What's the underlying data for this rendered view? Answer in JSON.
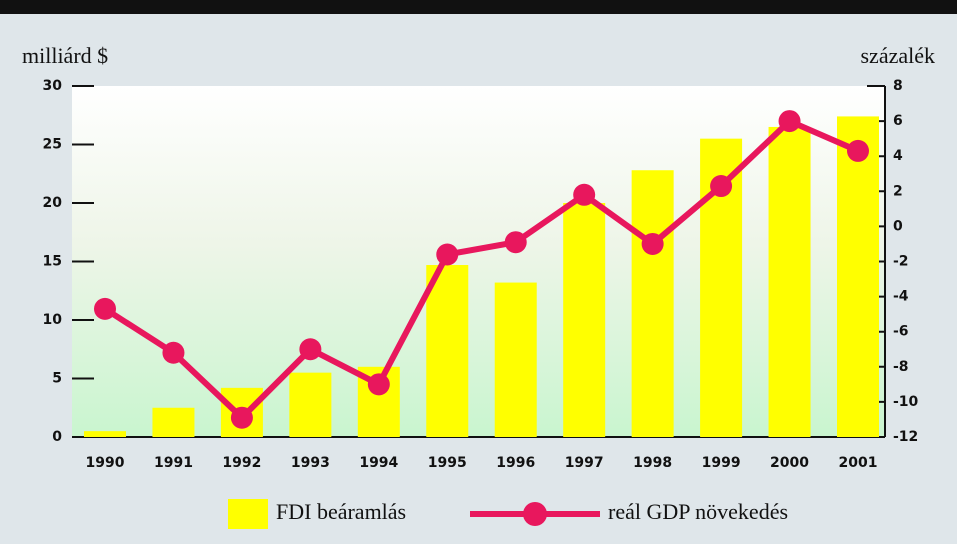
{
  "chart_data": {
    "type": "bar_line",
    "y_label": "milliárd $",
    "y2_label": "százalék",
    "categories": [
      "1990",
      "1991",
      "1992",
      "1993",
      "1994",
      "1995",
      "1996",
      "1997",
      "1998",
      "1999",
      "2000",
      "2001"
    ],
    "series": [
      {
        "name": "FDI beáramlás",
        "type": "bar",
        "color": "#ffff00",
        "values": [
          0.5,
          2.5,
          4.2,
          5.5,
          6,
          14.7,
          13.2,
          20,
          22.8,
          25.5,
          26.5,
          27.4
        ]
      },
      {
        "name": "reál GDP növekedés",
        "type": "line",
        "axis": "y2",
        "color": "#e8175d",
        "values": [
          -4.7,
          -7.2,
          -10.9,
          -7.0,
          -9.0,
          -1.6,
          -0.9,
          1.8,
          -1.0,
          2.3,
          6.0,
          4.3
        ]
      }
    ],
    "ylim": [
      0,
      30
    ],
    "yticks": [
      0,
      5,
      10,
      15,
      20,
      25,
      30
    ],
    "y2lim": [
      -12,
      8
    ],
    "y2ticks": [
      -12,
      -10,
      -8,
      -6,
      -4,
      -2,
      0,
      2,
      4,
      6,
      8
    ],
    "legend": "bottom"
  }
}
